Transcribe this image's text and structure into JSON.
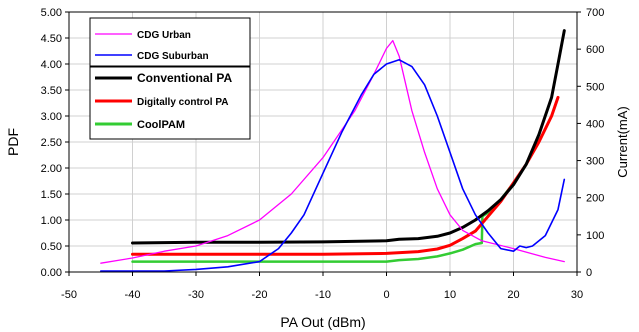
{
  "chart_data": {
    "type": "line",
    "title": "",
    "xlabel": "PA Out (dBm)",
    "ylabel": "PDF",
    "y2label": "Current(mA)",
    "xlim": [
      -50,
      30
    ],
    "ylim": [
      0,
      5
    ],
    "y2lim": [
      0,
      700
    ],
    "xticks": [
      "-50",
      "-40",
      "-30",
      "-20",
      "-10",
      "0",
      "10",
      "20",
      "30"
    ],
    "yticks": [
      "0.00",
      "0.50",
      "1.00",
      "1.50",
      "2.00",
      "2.50",
      "3.00",
      "3.50",
      "4.00",
      "4.50",
      "5.00"
    ],
    "y2ticks": [
      "0",
      "100",
      "200",
      "300",
      "400",
      "500",
      "600",
      "700"
    ],
    "grid": true,
    "legend_position": "top-left",
    "series": [
      {
        "name": "CDG Urban",
        "axis": "left",
        "color": "#ff00ff",
        "points": [
          [
            -45,
            0.17
          ],
          [
            -40,
            0.27
          ],
          [
            -35,
            0.4
          ],
          [
            -30,
            0.5
          ],
          [
            -25,
            0.7
          ],
          [
            -20,
            1.0
          ],
          [
            -15,
            1.5
          ],
          [
            -10,
            2.2
          ],
          [
            -5,
            3.1
          ],
          [
            -2,
            3.8
          ],
          [
            0,
            4.3
          ],
          [
            1,
            4.45
          ],
          [
            2,
            4.15
          ],
          [
            4,
            3.1
          ],
          [
            6,
            2.3
          ],
          [
            8,
            1.6
          ],
          [
            10,
            1.1
          ],
          [
            12,
            0.8
          ],
          [
            15,
            0.6
          ],
          [
            20,
            0.45
          ],
          [
            25,
            0.28
          ],
          [
            28,
            0.2
          ]
        ]
      },
      {
        "name": "CDG Suburban",
        "axis": "left",
        "color": "#0000ff",
        "points": [
          [
            -45,
            0.02
          ],
          [
            -35,
            0.02
          ],
          [
            -30,
            0.05
          ],
          [
            -25,
            0.1
          ],
          [
            -20,
            0.2
          ],
          [
            -17,
            0.45
          ],
          [
            -15,
            0.75
          ],
          [
            -13,
            1.1
          ],
          [
            -10,
            1.9
          ],
          [
            -7,
            2.7
          ],
          [
            -4,
            3.4
          ],
          [
            -2,
            3.8
          ],
          [
            0,
            4.0
          ],
          [
            2,
            4.08
          ],
          [
            4,
            3.95
          ],
          [
            6,
            3.6
          ],
          [
            8,
            3.0
          ],
          [
            10,
            2.3
          ],
          [
            12,
            1.6
          ],
          [
            14,
            1.1
          ],
          [
            16,
            0.75
          ],
          [
            18,
            0.45
          ],
          [
            20,
            0.4
          ],
          [
            21,
            0.5
          ],
          [
            22,
            0.47
          ],
          [
            23,
            0.5
          ],
          [
            25,
            0.7
          ],
          [
            27,
            1.2
          ],
          [
            28,
            1.78
          ]
        ]
      },
      {
        "name": "Conventional PA",
        "axis": "right",
        "color": "#000000",
        "points": [
          [
            -40,
            78
          ],
          [
            -30,
            80
          ],
          [
            -20,
            80
          ],
          [
            -10,
            81
          ],
          [
            0,
            84
          ],
          [
            2,
            88
          ],
          [
            5,
            90
          ],
          [
            8,
            96
          ],
          [
            10,
            105
          ],
          [
            12,
            120
          ],
          [
            14,
            140
          ],
          [
            16,
            165
          ],
          [
            18,
            195
          ],
          [
            20,
            235
          ],
          [
            22,
            290
          ],
          [
            24,
            370
          ],
          [
            26,
            470
          ],
          [
            27,
            560
          ],
          [
            28,
            650
          ]
        ]
      },
      {
        "name": "Digitally control PA",
        "axis": "right",
        "color": "#ff0000",
        "points": [
          [
            -40,
            48
          ],
          [
            -30,
            48
          ],
          [
            -20,
            48
          ],
          [
            -10,
            48
          ],
          [
            0,
            50
          ],
          [
            5,
            55
          ],
          [
            8,
            62
          ],
          [
            10,
            72
          ],
          [
            12,
            90
          ],
          [
            14,
            110
          ],
          [
            15,
            130
          ],
          [
            16,
            150
          ],
          [
            18,
            190
          ],
          [
            20,
            240
          ],
          [
            22,
            290
          ],
          [
            24,
            350
          ],
          [
            26,
            420
          ],
          [
            27,
            470
          ]
        ]
      },
      {
        "name": "CoolPAM",
        "axis": "right",
        "color": "#33cc33",
        "points": [
          [
            -40,
            28
          ],
          [
            -30,
            28
          ],
          [
            -20,
            28
          ],
          [
            -10,
            28
          ],
          [
            0,
            28
          ],
          [
            2,
            32
          ],
          [
            5,
            35
          ],
          [
            8,
            42
          ],
          [
            10,
            50
          ],
          [
            12,
            60
          ],
          [
            14,
            75
          ],
          [
            15,
            78
          ],
          [
            15.1,
            150
          ],
          [
            16,
            160
          ],
          [
            18,
            195
          ],
          [
            20,
            240
          ],
          [
            22,
            290
          ],
          [
            24,
            350
          ],
          [
            26,
            420
          ],
          [
            27,
            470
          ]
        ]
      }
    ]
  }
}
